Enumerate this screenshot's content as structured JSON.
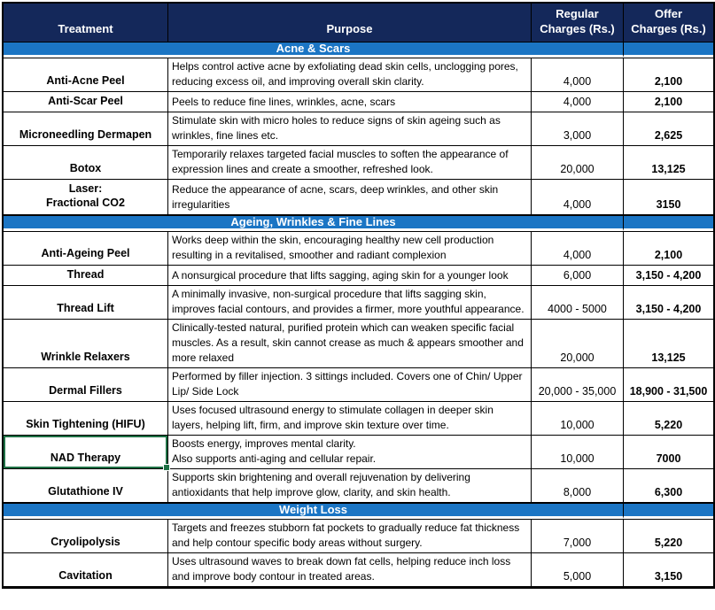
{
  "colors": {
    "header_bg": "#14285A",
    "section_bg": "#1B75C4",
    "selection_green": "#1E7145",
    "text_on_dark": "#FFFFFF",
    "body_text": "#000000",
    "grid_border": "#000000"
  },
  "header": {
    "treatment": "Treatment",
    "purpose": "Purpose",
    "regular": "Regular\nCharges (Rs.)",
    "offer": "Offer\nCharges (Rs.)"
  },
  "sections": [
    {
      "title": "Acne & Scars",
      "rows": [
        {
          "treatment": "Anti-Acne Peel",
          "purpose": "Helps control active acne by exfoliating dead skin cells, unclogging pores, reducing excess oil, and improving overall skin clarity.",
          "regular": "4,000",
          "offer": "2,100"
        },
        {
          "treatment": "Anti-Scar Peel",
          "purpose": "Peels to reduce fine lines, wrinkles, acne, scars",
          "regular": "4,000",
          "offer": "2,100"
        },
        {
          "treatment": "Microneedling Dermapen",
          "purpose": "Stimulate skin with micro holes to reduce signs of skin ageing such as wrinkles, fine lines etc.",
          "regular": "3,000",
          "offer": "2,625"
        },
        {
          "treatment": "Botox",
          "purpose": "Temporarily relaxes targeted facial muscles to soften the appearance of expression lines and create a smoother, refreshed look.",
          "regular": "20,000",
          "offer": "13,125"
        },
        {
          "treatment": "Laser:\nFractional CO2",
          "purpose": "Reduce the appearance of acne, scars, deep wrinkles, and other skin irregularities",
          "regular": "4,000",
          "offer": "3150"
        }
      ]
    },
    {
      "title": "Ageing, Wrinkles & Fine Lines",
      "rows": [
        {
          "treatment": "Anti-Ageing Peel",
          "purpose": "Works deep within the skin, encouraging healthy new cell production resulting in a revitalised, smoother and radiant complexion",
          "regular": "4,000",
          "offer": "2,100"
        },
        {
          "treatment": "Thread",
          "purpose": "A nonsurgical procedure that lifts sagging, aging skin for a younger look",
          "regular": "6,000",
          "offer": "3,150 - 4,200"
        },
        {
          "treatment": "Thread Lift",
          "purpose": "A minimally invasive, non-surgical procedure that lifts sagging skin, improves facial contours, and provides a firmer, more youthful appearance.",
          "regular": "4000 - 5000",
          "offer": "3,150 - 4,200"
        },
        {
          "treatment": "Wrinkle Relaxers",
          "purpose": "Clinically-tested natural, purified protein which can weaken specific facial muscles. As a result, skin cannot crease as much & appears smoother and more relaxed",
          "regular": "20,000",
          "offer": "13,125"
        },
        {
          "treatment": "Dermal Fillers",
          "purpose": "Performed by filler injection. 3 sittings included. Covers one of Chin/ Upper Lip/ Side Lock",
          "regular": "20,000 - 35,000",
          "offer": "18,900 - 31,500"
        },
        {
          "treatment": "Skin Tightening (HIFU)",
          "purpose": "Uses focused ultrasound energy to stimulate collagen in deeper skin layers, helping lift, firm, and improve skin texture over time.",
          "regular": "10,000",
          "offer": "5,220"
        },
        {
          "treatment": "NAD Therapy",
          "purpose": "Boosts energy, improves mental clarity.\nAlso supports anti-aging and cellular repair.",
          "regular": "10,000",
          "offer": "7000",
          "selected": true
        },
        {
          "treatment": "Glutathione IV",
          "purpose": "Supports skin brightening and overall rejuvenation by delivering antioxidants that help improve glow, clarity, and skin health.",
          "regular": "8,000",
          "offer": "6,300"
        }
      ]
    },
    {
      "title": "Weight Loss",
      "rows": [
        {
          "treatment": "Cryolipolysis",
          "purpose": "Targets and freezes stubborn fat pockets to gradually reduce fat thickness and help contour specific body areas without surgery.",
          "regular": "7,000",
          "offer": "5,220"
        },
        {
          "treatment": "Cavitation",
          "purpose": "Uses ultrasound waves to break down fat cells, helping reduce inch loss and improve body contour in treated areas.",
          "regular": "5,000",
          "offer": "3,150"
        }
      ]
    }
  ]
}
